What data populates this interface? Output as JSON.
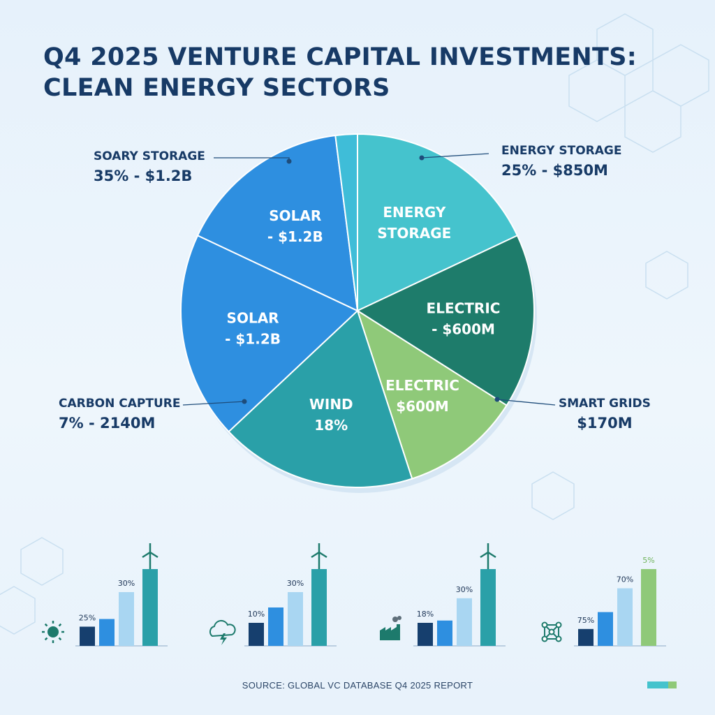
{
  "title": {
    "line1": "Q4 2025 VENTURE CAPITAL INVESTMENTS:",
    "line2": "CLEAN ENERGY SECTORS"
  },
  "chart_data": [
    {
      "type": "pie",
      "slices": [
        {
          "label_lines": [
            "ENERGY",
            "STORAGE"
          ],
          "value": 18,
          "color": "#45c3cd"
        },
        {
          "label_lines": [
            "ELECTRIC",
            "- $600M"
          ],
          "value": 16,
          "color": "#1e7c6b"
        },
        {
          "label_lines": [
            "ELECTRIC",
            "$600M"
          ],
          "value": 11,
          "color": "#8fc979"
        },
        {
          "label_lines": [
            "WIND",
            "18%"
          ],
          "value": 18,
          "color": "#2aa0a8"
        },
        {
          "label_lines": [
            "SOLAR",
            "- $1.2B"
          ],
          "value": 19,
          "color": "#2e8fe0"
        },
        {
          "label_lines": [
            "SOLAR",
            "- $1.2B"
          ],
          "value": 16,
          "color": "#2e8fe0"
        },
        {
          "label_lines": [],
          "value": 2,
          "color": "#3fbdd8"
        }
      ],
      "callouts": [
        {
          "line1": "SOARY STORAGE",
          "line2": "35% - $1.2B",
          "side": "left"
        },
        {
          "line1": "CARBON CAPTURE",
          "line2": "7% - 2140M",
          "side": "left"
        },
        {
          "line1": "ENERGY STORAGE",
          "line2": "25% - $850M",
          "side": "right"
        },
        {
          "line1": "SMART GRIDS",
          "line2": "$170M",
          "side": "right"
        }
      ]
    },
    {
      "type": "bar",
      "icon": "sun-icon",
      "values": [
        25,
        35,
        70,
        100
      ],
      "data_labels": [
        "25%",
        "",
        "30%",
        ""
      ],
      "series_colors": [
        "#163f6e",
        "#2e8fe0",
        "#a9d6f2",
        "#2aa0a8"
      ],
      "top_icon": "wind-turbine-icon"
    },
    {
      "type": "bar",
      "icon": "cloud-lightning-icon",
      "values": [
        30,
        50,
        70,
        100
      ],
      "data_labels": [
        "10%",
        "",
        "30%",
        ""
      ],
      "series_colors": [
        "#163f6e",
        "#2e8fe0",
        "#a9d6f2",
        "#2aa0a8"
      ],
      "top_icon": "wind-turbine-icon"
    },
    {
      "type": "bar",
      "icon": "factory-icon",
      "values": [
        30,
        33,
        62,
        100
      ],
      "data_labels": [
        "18%",
        "",
        "30%",
        ""
      ],
      "series_colors": [
        "#163f6e",
        "#2e8fe0",
        "#a9d6f2",
        "#2aa0a8"
      ],
      "top_icon": "wind-turbine-icon"
    },
    {
      "type": "bar",
      "icon": "grid-network-icon",
      "values": [
        22,
        44,
        75,
        100
      ],
      "data_labels": [
        "75%",
        "",
        "70%",
        "5%"
      ],
      "series_colors": [
        "#163f6e",
        "#2e8fe0",
        "#a9d6f2",
        "#8fc979"
      ],
      "top_icon": ""
    }
  ],
  "source": "SOURCE: GLOBAL VC DATABASE Q4 2025 REPORT",
  "legend_swatch_colors": [
    "#45c3cd",
    "#8fc979"
  ]
}
